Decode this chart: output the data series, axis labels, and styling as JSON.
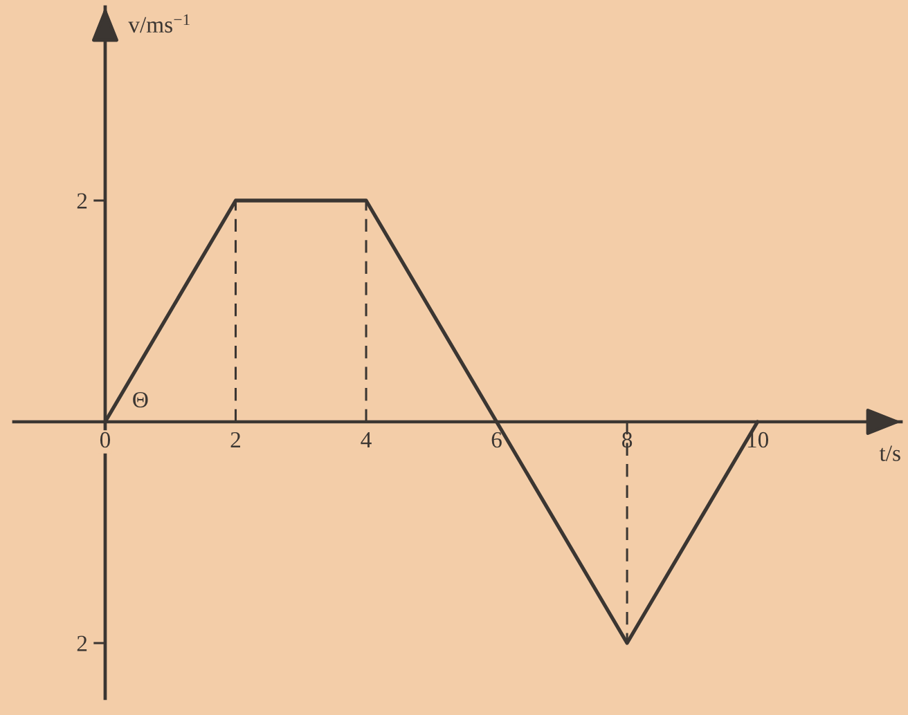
{
  "chart_data": {
    "type": "line",
    "xlabel": "t/s",
    "ylabel": "v/ms$^{−1}$",
    "x": [
      0,
      2,
      4,
      6,
      8,
      10
    ],
    "series": [
      {
        "color": "#3b3632",
        "values": [
          0,
          2,
          2,
          0,
          -2,
          0
        ]
      }
    ],
    "xlim": [
      -1.4,
      12.2
    ],
    "ylim": [
      -2.5,
      3.75
    ],
    "xticks": [
      0,
      2,
      4,
      6,
      8,
      10
    ],
    "yticks": [
      {
        "value": -2,
        "label": "2"
      },
      2
    ],
    "ref_lines": [
      {
        "axis": "x",
        "value": 2,
        "line_style": "dashed",
        "color": "#3b3632"
      },
      {
        "axis": "x",
        "value": 4,
        "line_style": "dashed",
        "color": "#3b3632"
      },
      {
        "axis": "x",
        "value": 8,
        "line_style": "dashed",
        "color": "#3b3632"
      }
    ],
    "annotations": [
      "Θ"
    ],
    "grid": false,
    "marker": "none",
    "line_style": "solid"
  }
}
